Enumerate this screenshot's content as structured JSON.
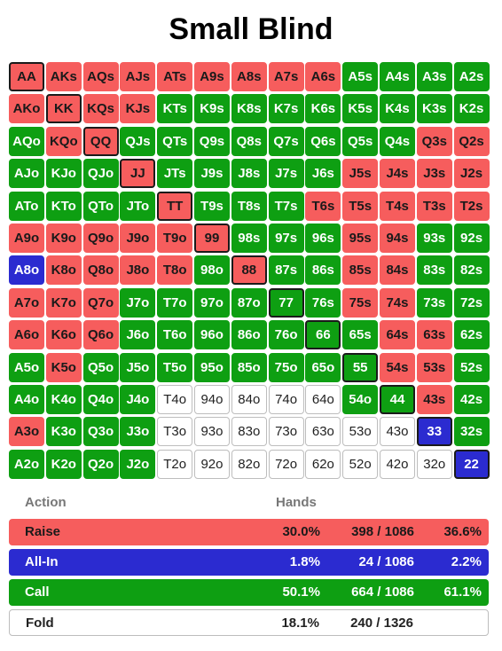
{
  "title": "Small Blind",
  "colors": {
    "raise": "#f65d5d",
    "allin": "#2b2bd0",
    "call": "#0e9f12",
    "fold": "#ffffff"
  },
  "grid": [
    [
      [
        "AA",
        "r"
      ],
      [
        "AKs",
        "r"
      ],
      [
        "AQs",
        "r"
      ],
      [
        "AJs",
        "r"
      ],
      [
        "ATs",
        "r"
      ],
      [
        "A9s",
        "r"
      ],
      [
        "A8s",
        "r"
      ],
      [
        "A7s",
        "r"
      ],
      [
        "A6s",
        "r"
      ],
      [
        "A5s",
        "c"
      ],
      [
        "A4s",
        "c"
      ],
      [
        "A3s",
        "c"
      ],
      [
        "A2s",
        "c"
      ]
    ],
    [
      [
        "AKo",
        "r"
      ],
      [
        "KK",
        "r"
      ],
      [
        "KQs",
        "r"
      ],
      [
        "KJs",
        "r"
      ],
      [
        "KTs",
        "c"
      ],
      [
        "K9s",
        "c"
      ],
      [
        "K8s",
        "c"
      ],
      [
        "K7s",
        "c"
      ],
      [
        "K6s",
        "c"
      ],
      [
        "K5s",
        "c"
      ],
      [
        "K4s",
        "c"
      ],
      [
        "K3s",
        "c"
      ],
      [
        "K2s",
        "c"
      ]
    ],
    [
      [
        "AQo",
        "c"
      ],
      [
        "KQo",
        "r"
      ],
      [
        "QQ",
        "r"
      ],
      [
        "QJs",
        "c"
      ],
      [
        "QTs",
        "c"
      ],
      [
        "Q9s",
        "c"
      ],
      [
        "Q8s",
        "c"
      ],
      [
        "Q7s",
        "c"
      ],
      [
        "Q6s",
        "c"
      ],
      [
        "Q5s",
        "c"
      ],
      [
        "Q4s",
        "c"
      ],
      [
        "Q3s",
        "r"
      ],
      [
        "Q2s",
        "r"
      ]
    ],
    [
      [
        "AJo",
        "c"
      ],
      [
        "KJo",
        "c"
      ],
      [
        "QJo",
        "c"
      ],
      [
        "JJ",
        "r"
      ],
      [
        "JTs",
        "c"
      ],
      [
        "J9s",
        "c"
      ],
      [
        "J8s",
        "c"
      ],
      [
        "J7s",
        "c"
      ],
      [
        "J6s",
        "c"
      ],
      [
        "J5s",
        "r"
      ],
      [
        "J4s",
        "r"
      ],
      [
        "J3s",
        "r"
      ],
      [
        "J2s",
        "r"
      ]
    ],
    [
      [
        "ATo",
        "c"
      ],
      [
        "KTo",
        "c"
      ],
      [
        "QTo",
        "c"
      ],
      [
        "JTo",
        "c"
      ],
      [
        "TT",
        "r"
      ],
      [
        "T9s",
        "c"
      ],
      [
        "T8s",
        "c"
      ],
      [
        "T7s",
        "c"
      ],
      [
        "T6s",
        "r"
      ],
      [
        "T5s",
        "r"
      ],
      [
        "T4s",
        "r"
      ],
      [
        "T3s",
        "r"
      ],
      [
        "T2s",
        "r"
      ]
    ],
    [
      [
        "A9o",
        "r"
      ],
      [
        "K9o",
        "r"
      ],
      [
        "Q9o",
        "r"
      ],
      [
        "J9o",
        "r"
      ],
      [
        "T9o",
        "r"
      ],
      [
        "99",
        "r"
      ],
      [
        "98s",
        "c"
      ],
      [
        "97s",
        "c"
      ],
      [
        "96s",
        "c"
      ],
      [
        "95s",
        "r"
      ],
      [
        "94s",
        "r"
      ],
      [
        "93s",
        "c"
      ],
      [
        "92s",
        "c"
      ]
    ],
    [
      [
        "A8o",
        "a"
      ],
      [
        "K8o",
        "r"
      ],
      [
        "Q8o",
        "r"
      ],
      [
        "J8o",
        "r"
      ],
      [
        "T8o",
        "r"
      ],
      [
        "98o",
        "c"
      ],
      [
        "88",
        "r"
      ],
      [
        "87s",
        "c"
      ],
      [
        "86s",
        "c"
      ],
      [
        "85s",
        "r"
      ],
      [
        "84s",
        "r"
      ],
      [
        "83s",
        "c"
      ],
      [
        "82s",
        "c"
      ]
    ],
    [
      [
        "A7o",
        "r"
      ],
      [
        "K7o",
        "r"
      ],
      [
        "Q7o",
        "r"
      ],
      [
        "J7o",
        "c"
      ],
      [
        "T7o",
        "c"
      ],
      [
        "97o",
        "c"
      ],
      [
        "87o",
        "c"
      ],
      [
        "77",
        "c"
      ],
      [
        "76s",
        "c"
      ],
      [
        "75s",
        "r"
      ],
      [
        "74s",
        "r"
      ],
      [
        "73s",
        "c"
      ],
      [
        "72s",
        "c"
      ]
    ],
    [
      [
        "A6o",
        "r"
      ],
      [
        "K6o",
        "r"
      ],
      [
        "Q6o",
        "r"
      ],
      [
        "J6o",
        "c"
      ],
      [
        "T6o",
        "c"
      ],
      [
        "96o",
        "c"
      ],
      [
        "86o",
        "c"
      ],
      [
        "76o",
        "c"
      ],
      [
        "66",
        "c"
      ],
      [
        "65s",
        "c"
      ],
      [
        "64s",
        "r"
      ],
      [
        "63s",
        "r"
      ],
      [
        "62s",
        "c"
      ]
    ],
    [
      [
        "A5o",
        "c"
      ],
      [
        "K5o",
        "r"
      ],
      [
        "Q5o",
        "c"
      ],
      [
        "J5o",
        "c"
      ],
      [
        "T5o",
        "c"
      ],
      [
        "95o",
        "c"
      ],
      [
        "85o",
        "c"
      ],
      [
        "75o",
        "c"
      ],
      [
        "65o",
        "c"
      ],
      [
        "55",
        "c"
      ],
      [
        "54s",
        "r"
      ],
      [
        "53s",
        "r"
      ],
      [
        "52s",
        "c"
      ]
    ],
    [
      [
        "A4o",
        "c"
      ],
      [
        "K4o",
        "c"
      ],
      [
        "Q4o",
        "c"
      ],
      [
        "J4o",
        "c"
      ],
      [
        "T4o",
        "f"
      ],
      [
        "94o",
        "f"
      ],
      [
        "84o",
        "f"
      ],
      [
        "74o",
        "f"
      ],
      [
        "64o",
        "f"
      ],
      [
        "54o",
        "c"
      ],
      [
        "44",
        "c"
      ],
      [
        "43s",
        "r"
      ],
      [
        "42s",
        "c"
      ]
    ],
    [
      [
        "A3o",
        "r"
      ],
      [
        "K3o",
        "c"
      ],
      [
        "Q3o",
        "c"
      ],
      [
        "J3o",
        "c"
      ],
      [
        "T3o",
        "f"
      ],
      [
        "93o",
        "f"
      ],
      [
        "83o",
        "f"
      ],
      [
        "73o",
        "f"
      ],
      [
        "63o",
        "f"
      ],
      [
        "53o",
        "f"
      ],
      [
        "43o",
        "f"
      ],
      [
        "33",
        "a"
      ],
      [
        "32s",
        "c"
      ]
    ],
    [
      [
        "A2o",
        "c"
      ],
      [
        "K2o",
        "c"
      ],
      [
        "Q2o",
        "c"
      ],
      [
        "J2o",
        "c"
      ],
      [
        "T2o",
        "f"
      ],
      [
        "92o",
        "f"
      ],
      [
        "82o",
        "f"
      ],
      [
        "72o",
        "f"
      ],
      [
        "62o",
        "f"
      ],
      [
        "52o",
        "f"
      ],
      [
        "42o",
        "f"
      ],
      [
        "32o",
        "f"
      ],
      [
        "22",
        "a"
      ]
    ]
  ],
  "legend": {
    "header_action": "Action",
    "header_hands": "Hands",
    "raise": {
      "label": "Raise",
      "pct": "30.0%",
      "count": "398 / 1086",
      "pct2": "36.6%"
    },
    "allin": {
      "label": "All-In",
      "pct": "1.8%",
      "count": "24 / 1086",
      "pct2": "2.2%"
    },
    "call": {
      "label": "Call",
      "pct": "50.1%",
      "count": "664 / 1086",
      "pct2": "61.1%"
    },
    "fold": {
      "label": "Fold",
      "pct": "18.1%",
      "count": "240 / 1326",
      "pct2": ""
    }
  }
}
